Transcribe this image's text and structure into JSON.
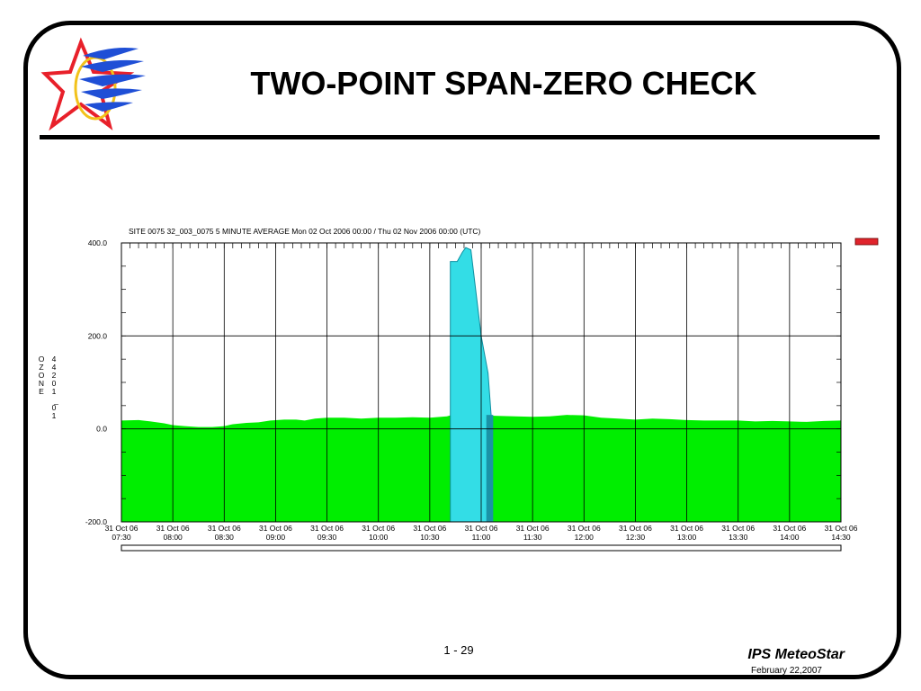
{
  "slide": {
    "title": "TWO-POINT SPAN-ZERO CHECK",
    "page_number": "1 - 29",
    "brand": "IPS MeteoStar",
    "date": "February 22,2007"
  },
  "logo": {
    "icon": "ips-meteostar-star-logo-icon",
    "colors": {
      "star": "#e8202a",
      "stripes": "#1f4fd6",
      "ring": "#f2c21b"
    }
  },
  "legend_swatch": {
    "color": "#e0242c"
  },
  "chart_data": {
    "type": "area",
    "title": "SITE 0075 32_003_0075 5 MINUTE AVERAGE Mon 02 Oct 2006 00:00 / Thu 02 Nov 2006 00:00 (UTC)",
    "ylabel_left": [
      "O",
      "Z",
      "O",
      "N",
      "E"
    ],
    "ylabel_right": [
      "4",
      "4",
      "2",
      "0",
      "1",
      "",
      "0̅",
      "1"
    ],
    "ylim": [
      -200,
      400
    ],
    "y_ticks": [
      "400.0",
      "200.0",
      "0.0",
      "-200.0"
    ],
    "y_tick_values": [
      400,
      200,
      0,
      -200
    ],
    "x_tick_labels": [
      [
        "31 Oct 06",
        "07:30"
      ],
      [
        "31 Oct 06",
        "08:00"
      ],
      [
        "31 Oct 06",
        "08:30"
      ],
      [
        "31 Oct 06",
        "09:00"
      ],
      [
        "31 Oct 06",
        "09:30"
      ],
      [
        "31 Oct 06",
        "10:00"
      ],
      [
        "31 Oct 06",
        "10:30"
      ],
      [
        "31 Oct 06",
        "11:00"
      ],
      [
        "31 Oct 06",
        "11:30"
      ],
      [
        "31 Oct 06",
        "12:00"
      ],
      [
        "31 Oct 06",
        "12:30"
      ],
      [
        "31 Oct 06",
        "13:00"
      ],
      [
        "31 Oct 06",
        "13:30"
      ],
      [
        "31 Oct 06",
        "14:00"
      ],
      [
        "31 Oct 06",
        "14:30"
      ]
    ],
    "x_range_minutes": [
      450,
      870
    ],
    "grid": true,
    "colors": {
      "baseline_area": "#00ee00",
      "span_area": "#33dde6",
      "span_dark": "#1a93a6"
    },
    "series": [
      {
        "kind": "ambient",
        "points": [
          [
            450,
            18
          ],
          [
            460,
            19
          ],
          [
            467,
            16
          ],
          [
            475,
            12
          ],
          [
            480,
            8
          ],
          [
            487,
            6
          ],
          [
            495,
            4
          ],
          [
            503,
            4
          ],
          [
            510,
            6
          ],
          [
            515,
            10
          ],
          [
            523,
            13
          ],
          [
            530,
            14
          ],
          [
            537,
            18
          ],
          [
            545,
            20
          ],
          [
            552,
            20
          ],
          [
            557,
            18
          ],
          [
            563,
            22
          ],
          [
            570,
            24
          ],
          [
            580,
            24
          ],
          [
            590,
            22
          ],
          [
            600,
            24
          ],
          [
            610,
            24
          ],
          [
            620,
            25
          ],
          [
            630,
            24
          ],
          [
            640,
            27
          ],
          [
            643,
            30
          ],
          [
            650,
            30
          ],
          [
            660,
            29
          ],
          [
            670,
            28
          ],
          [
            680,
            27
          ],
          [
            690,
            26
          ],
          [
            700,
            27
          ],
          [
            710,
            30
          ],
          [
            720,
            29
          ],
          [
            730,
            24
          ],
          [
            740,
            22
          ],
          [
            750,
            20
          ],
          [
            760,
            22
          ],
          [
            770,
            21
          ],
          [
            780,
            19
          ],
          [
            790,
            18
          ],
          [
            800,
            18
          ],
          [
            810,
            18
          ],
          [
            820,
            16
          ],
          [
            830,
            17
          ],
          [
            840,
            16
          ],
          [
            850,
            15
          ],
          [
            860,
            17
          ],
          [
            870,
            18
          ]
        ]
      },
      {
        "kind": "span",
        "points": [
          [
            642,
            360
          ],
          [
            646,
            360
          ],
          [
            649,
            380
          ],
          [
            651,
            390
          ],
          [
            654,
            385
          ],
          [
            660,
            200
          ],
          [
            664,
            120
          ],
          [
            666,
            20
          ]
        ]
      },
      {
        "kind": "zero",
        "points": [
          [
            663,
            20
          ],
          [
            667,
            20
          ],
          [
            668,
            30
          ]
        ]
      }
    ]
  }
}
